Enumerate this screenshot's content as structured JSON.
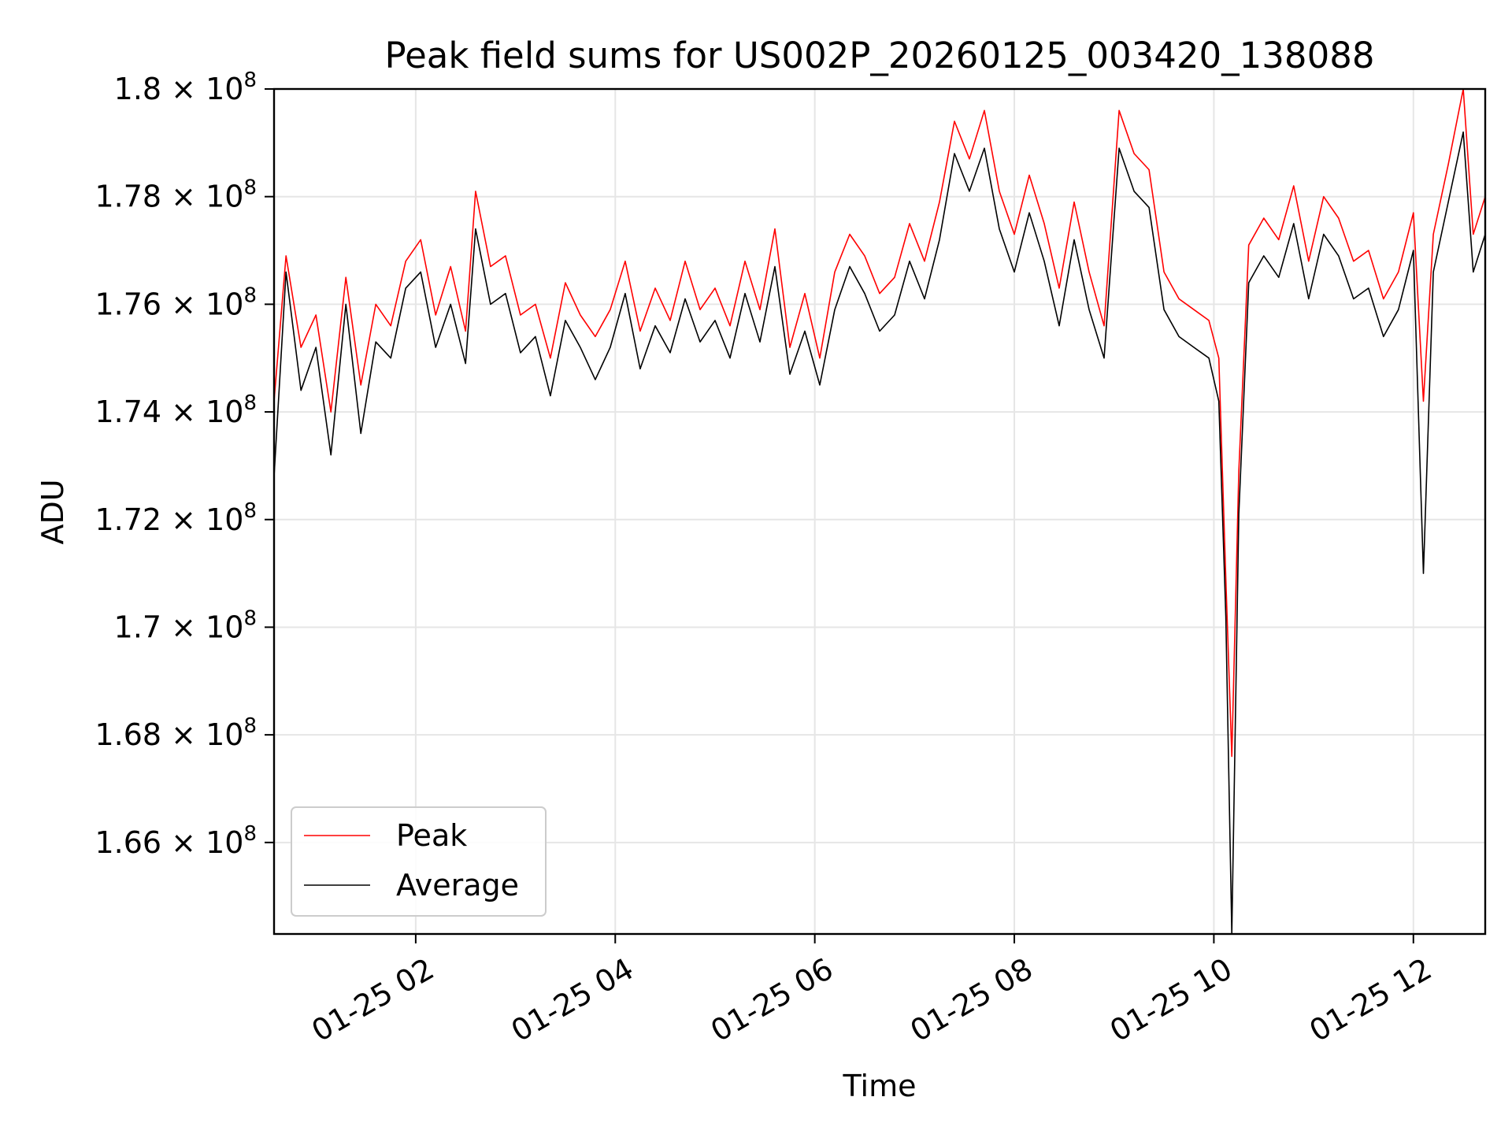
{
  "chart_data": {
    "type": "line",
    "title": "Peak field sums for US002P_20260125_003420_138088",
    "xlabel": "Time",
    "ylabel": "ADU",
    "xlim_hours": [
      0.58,
      12.72
    ],
    "ylim": [
      164300000,
      180000000
    ],
    "x_ticks": [
      {
        "hour": 2,
        "label": "01-25 02"
      },
      {
        "hour": 4,
        "label": "01-25 04"
      },
      {
        "hour": 6,
        "label": "01-25 06"
      },
      {
        "hour": 8,
        "label": "01-25 08"
      },
      {
        "hour": 10,
        "label": "01-25 10"
      },
      {
        "hour": 12,
        "label": "01-25 12"
      }
    ],
    "y_ticks": [
      {
        "value": 166000000,
        "mantissa": "1.66",
        "exp": "8"
      },
      {
        "value": 168000000,
        "mantissa": "1.68",
        "exp": "8"
      },
      {
        "value": 170000000,
        "mantissa": "1.7",
        "exp": "8"
      },
      {
        "value": 172000000,
        "mantissa": "1.72",
        "exp": "8"
      },
      {
        "value": 174000000,
        "mantissa": "1.74",
        "exp": "8"
      },
      {
        "value": 176000000,
        "mantissa": "1.76",
        "exp": "8"
      },
      {
        "value": 178000000,
        "mantissa": "1.78",
        "exp": "8"
      },
      {
        "value": 180000000,
        "mantissa": "1.8",
        "exp": "8"
      }
    ],
    "grid": true,
    "legend_position": "lower-left",
    "series": [
      {
        "name": "Peak",
        "color": "#ff0000",
        "x": [
          0.58,
          0.7,
          0.85,
          1.0,
          1.15,
          1.3,
          1.45,
          1.6,
          1.75,
          1.9,
          2.05,
          2.2,
          2.35,
          2.5,
          2.6,
          2.75,
          2.9,
          3.05,
          3.2,
          3.35,
          3.5,
          3.65,
          3.8,
          3.95,
          4.1,
          4.25,
          4.4,
          4.55,
          4.7,
          4.85,
          5.0,
          5.15,
          5.3,
          5.45,
          5.6,
          5.75,
          5.9,
          6.05,
          6.2,
          6.35,
          6.5,
          6.65,
          6.8,
          6.95,
          7.1,
          7.25,
          7.4,
          7.55,
          7.7,
          7.85,
          8.0,
          8.15,
          8.3,
          8.45,
          8.6,
          8.75,
          8.9,
          9.05,
          9.2,
          9.35,
          9.5,
          9.65,
          9.8,
          9.95,
          10.05,
          10.12,
          10.18,
          10.25,
          10.35,
          10.5,
          10.65,
          10.8,
          10.95,
          11.1,
          11.25,
          11.4,
          11.55,
          11.7,
          11.85,
          12.0,
          12.1,
          12.2,
          12.35,
          12.5,
          12.6,
          12.72
        ],
        "values": [
          174200000,
          176900000,
          175200000,
          175800000,
          174000000,
          176500000,
          174500000,
          176000000,
          175600000,
          176800000,
          177200000,
          175800000,
          176700000,
          175500000,
          178100000,
          176700000,
          176900000,
          175800000,
          176000000,
          175000000,
          176400000,
          175800000,
          175400000,
          175900000,
          176800000,
          175500000,
          176300000,
          175700000,
          176800000,
          175900000,
          176300000,
          175600000,
          176800000,
          175900000,
          177400000,
          175200000,
          176200000,
          175000000,
          176600000,
          177300000,
          176900000,
          176200000,
          176500000,
          177500000,
          176800000,
          177900000,
          179400000,
          178700000,
          179600000,
          178100000,
          177300000,
          178400000,
          177500000,
          176300000,
          177900000,
          176600000,
          175600000,
          179600000,
          178800000,
          178500000,
          176600000,
          176100000,
          175900000,
          175700000,
          175000000,
          170900000,
          167600000,
          172900000,
          177100000,
          177600000,
          177200000,
          178200000,
          176800000,
          178000000,
          177600000,
          176800000,
          177000000,
          176100000,
          176600000,
          177700000,
          174200000,
          177300000,
          178600000,
          180000000,
          177300000,
          178000000
        ]
      },
      {
        "name": "Average",
        "color": "#000000",
        "x": [
          0.58,
          0.7,
          0.85,
          1.0,
          1.15,
          1.3,
          1.45,
          1.6,
          1.75,
          1.9,
          2.05,
          2.2,
          2.35,
          2.5,
          2.6,
          2.75,
          2.9,
          3.05,
          3.2,
          3.35,
          3.5,
          3.65,
          3.8,
          3.95,
          4.1,
          4.25,
          4.4,
          4.55,
          4.7,
          4.85,
          5.0,
          5.15,
          5.3,
          5.45,
          5.6,
          5.75,
          5.9,
          6.05,
          6.2,
          6.35,
          6.5,
          6.65,
          6.8,
          6.95,
          7.1,
          7.25,
          7.4,
          7.55,
          7.7,
          7.85,
          8.0,
          8.15,
          8.3,
          8.45,
          8.6,
          8.75,
          8.9,
          9.05,
          9.2,
          9.35,
          9.5,
          9.65,
          9.8,
          9.95,
          10.05,
          10.12,
          10.18,
          10.25,
          10.35,
          10.5,
          10.65,
          10.8,
          10.95,
          11.1,
          11.25,
          11.4,
          11.55,
          11.7,
          11.85,
          12.0,
          12.1,
          12.2,
          12.35,
          12.5,
          12.6,
          12.72
        ],
        "values": [
          172800000,
          176600000,
          174400000,
          175200000,
          173200000,
          176000000,
          173600000,
          175300000,
          175000000,
          176300000,
          176600000,
          175200000,
          176000000,
          174900000,
          177400000,
          176000000,
          176200000,
          175100000,
          175400000,
          174300000,
          175700000,
          175200000,
          174600000,
          175200000,
          176200000,
          174800000,
          175600000,
          175100000,
          176100000,
          175300000,
          175700000,
          175000000,
          176200000,
          175300000,
          176700000,
          174700000,
          175500000,
          174500000,
          175900000,
          176700000,
          176200000,
          175500000,
          175800000,
          176800000,
          176100000,
          177200000,
          178800000,
          178100000,
          178900000,
          177400000,
          176600000,
          177700000,
          176800000,
          175600000,
          177200000,
          175900000,
          175000000,
          178900000,
          178100000,
          177800000,
          175900000,
          175400000,
          175200000,
          175000000,
          174200000,
          170200000,
          164300000,
          172100000,
          176400000,
          176900000,
          176500000,
          177500000,
          176100000,
          177300000,
          176900000,
          176100000,
          176300000,
          175400000,
          175900000,
          177000000,
          171000000,
          176600000,
          177900000,
          179200000,
          176600000,
          177300000
        ]
      }
    ]
  }
}
